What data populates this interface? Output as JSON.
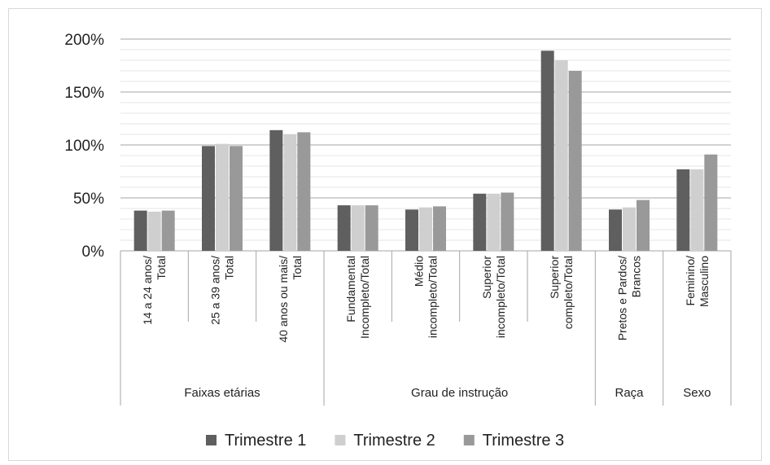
{
  "chart_data": {
    "type": "bar",
    "yticks": [
      "0%",
      "50%",
      "100%",
      "150%",
      "200%"
    ],
    "ylim": [
      0,
      200
    ],
    "categories": [
      [
        "14 a 24 anos/",
        "Total"
      ],
      [
        "25 a 39 anos/",
        "Total"
      ],
      [
        "40 anos ou mais/",
        "Total"
      ],
      [
        "Fundamental",
        "Incompleto/Total"
      ],
      [
        "Médio",
        "incompleto/Total"
      ],
      [
        "Superior",
        "incompleto/Total"
      ],
      [
        "Superior",
        "completo/Total"
      ],
      [
        "Pretos e Pardos/",
        "Brancos"
      ],
      [
        "Feminino/",
        "Masculino"
      ]
    ],
    "groups": [
      {
        "label": "Faixas etárias",
        "count": 3
      },
      {
        "label": "Grau de instrução",
        "count": 4
      },
      {
        "label": "Raça",
        "count": 1
      },
      {
        "label": "Sexo",
        "count": 1
      }
    ],
    "series": [
      {
        "name": "Trimestre 1",
        "color": "#5f5f5f",
        "values": [
          38,
          99,
          114,
          43,
          39,
          54,
          189,
          39,
          77
        ]
      },
      {
        "name": "Trimestre 2",
        "color": "#cfcfcf",
        "values": [
          37,
          101,
          110,
          43,
          41,
          54,
          180,
          41,
          77
        ]
      },
      {
        "name": "Trimestre 3",
        "color": "#999999",
        "values": [
          38,
          99,
          112,
          43,
          42,
          55,
          170,
          48,
          91
        ]
      }
    ],
    "legend_position": "bottom",
    "grid": true
  }
}
